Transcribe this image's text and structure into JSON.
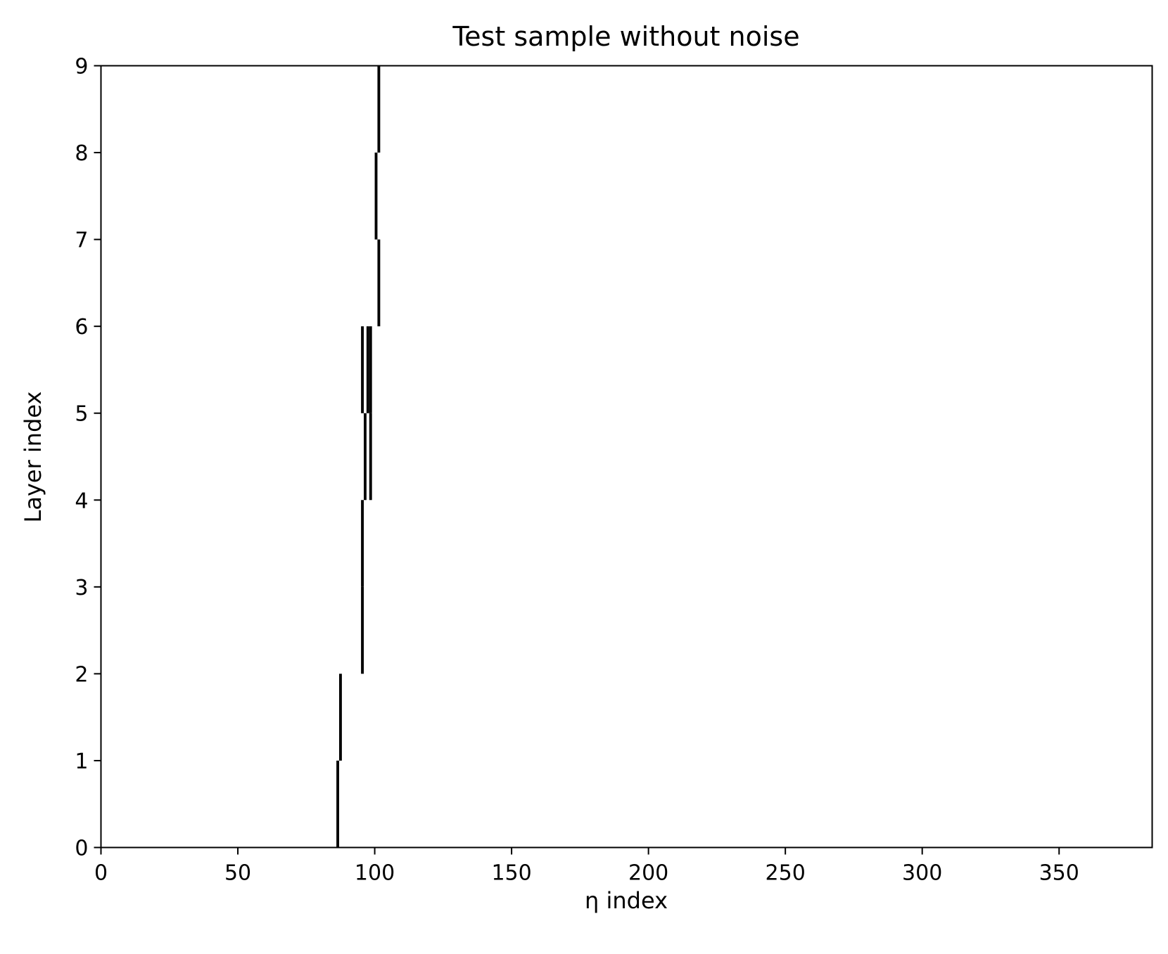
{
  "chart_data": {
    "type": "heatmap",
    "title": "Test sample without noise",
    "xlabel": "η index",
    "ylabel": "Layer index",
    "xlim": [
      0,
      384
    ],
    "ylim": [
      0,
      9
    ],
    "xticks": [
      0,
      50,
      100,
      150,
      200,
      250,
      300,
      350
    ],
    "yticks": [
      0,
      1,
      2,
      3,
      4,
      5,
      6,
      7,
      8,
      9
    ],
    "grid": false,
    "legend": "none",
    "colors": {
      "active": "#000000",
      "background": "#ffffff"
    },
    "cells": [
      {
        "layer": 0,
        "eta": 86
      },
      {
        "layer": 1,
        "eta": 87
      },
      {
        "layer": 2,
        "eta": 95
      },
      {
        "layer": 3,
        "eta": 95
      },
      {
        "layer": 4,
        "eta": 96
      },
      {
        "layer": 4,
        "eta": 98
      },
      {
        "layer": 5,
        "eta": 95
      },
      {
        "layer": 5,
        "eta": 97
      },
      {
        "layer": 5,
        "eta": 98
      },
      {
        "layer": 6,
        "eta": 101
      },
      {
        "layer": 7,
        "eta": 100
      },
      {
        "layer": 8,
        "eta": 101
      }
    ]
  }
}
